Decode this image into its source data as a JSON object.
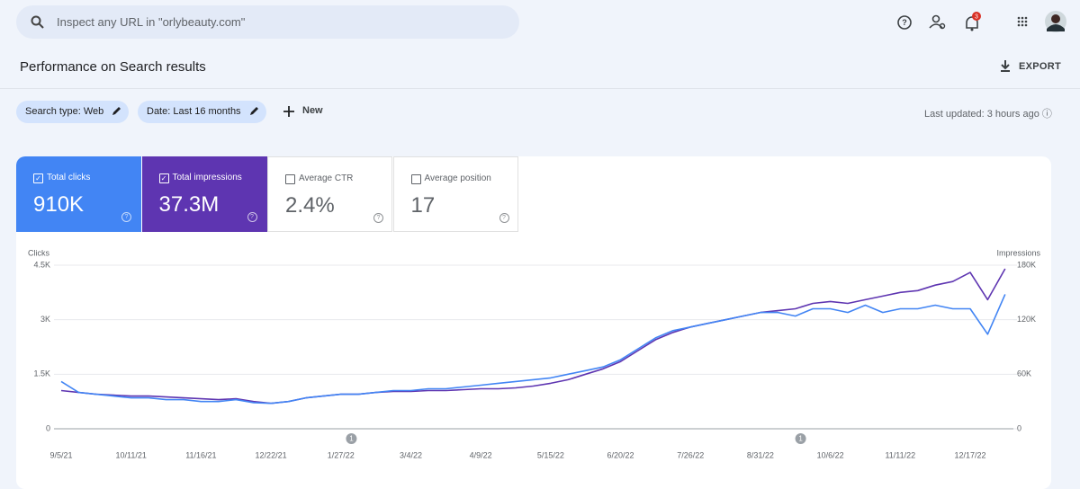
{
  "search": {
    "placeholder": "Inspect any URL in \"orlybeauty.com\""
  },
  "notification_count": 3,
  "header": {
    "title": "Performance on Search results",
    "export": "EXPORT"
  },
  "filters": [
    "Search type: Web",
    "Date: Last 16 months"
  ],
  "new_filter": "New",
  "last_updated": "Last updated: 3 hours ago",
  "metrics": [
    {
      "label": "Total clicks",
      "value": "910K",
      "checked": true
    },
    {
      "label": "Total impressions",
      "value": "37.3M",
      "checked": true
    },
    {
      "label": "Average CTR",
      "value": "2.4%",
      "checked": false
    },
    {
      "label": "Average position",
      "value": "17",
      "checked": false
    }
  ],
  "chart_data": {
    "type": "line",
    "y_label": "Clicks",
    "y2_label": "Impressions",
    "categories": [
      "9/5/21",
      null,
      null,
      null,
      "10/11/21",
      null,
      null,
      null,
      "11/16/21",
      null,
      null,
      null,
      "12/22/21",
      null,
      null,
      null,
      "1/27/22",
      null,
      null,
      null,
      "3/4/22",
      null,
      null,
      null,
      "4/9/22",
      null,
      null,
      null,
      "5/15/22",
      null,
      null,
      null,
      "6/20/22",
      null,
      null,
      null,
      "7/26/22",
      null,
      null,
      null,
      "8/31/22",
      null,
      null,
      null,
      "10/6/22",
      null,
      null,
      null,
      "11/11/22",
      null,
      null,
      null,
      "12/17/22",
      null,
      null
    ],
    "series": [
      {
        "color": "#4285f4",
        "values": [
          1300,
          1000,
          950,
          900,
          850,
          850,
          800,
          800,
          750,
          750,
          800,
          720,
          700,
          750,
          850,
          900,
          950,
          950,
          1000,
          1050,
          1050,
          1100,
          1100,
          1150,
          1200,
          1250,
          1300,
          1350,
          1400,
          1500,
          1600,
          1700,
          1900,
          2200,
          2500,
          2700,
          2800,
          2900,
          3000,
          3100,
          3200,
          3200,
          3100,
          3300,
          3300,
          3200,
          3400,
          3200,
          3300,
          3300,
          3400,
          3300,
          3300,
          2600,
          3700
        ]
      },
      {
        "color": "#5e35b1",
        "axis": "y2",
        "values": [
          42000,
          40000,
          38000,
          37000,
          36000,
          36000,
          35000,
          34000,
          33000,
          32000,
          33000,
          30000,
          28000,
          30000,
          34000,
          36000,
          38000,
          38000,
          40000,
          41000,
          41000,
          42000,
          42000,
          43000,
          44000,
          44000,
          45000,
          47000,
          50000,
          54000,
          60000,
          66000,
          74000,
          86000,
          98000,
          106000,
          112000,
          116000,
          120000,
          124000,
          128000,
          130000,
          132000,
          138000,
          140000,
          138000,
          142000,
          146000,
          150000,
          152000,
          158000,
          162000,
          172000,
          142000,
          176000
        ]
      }
    ],
    "ylim": [
      0,
      4500
    ],
    "yticks": [
      0,
      {
        "value": 1500,
        "label": "1.5K"
      },
      {
        "value": 3000,
        "label": "3K"
      },
      {
        "value": 4500,
        "label": "4.5K"
      }
    ],
    "y2lim": [
      0,
      180000
    ],
    "y2ticks": [
      0,
      {
        "value": 60000,
        "label": "60K"
      },
      {
        "value": 120000,
        "label": "120K"
      },
      {
        "value": 180000,
        "label": "180K"
      }
    ],
    "grid": true,
    "annotations": [
      "1",
      "1"
    ]
  }
}
